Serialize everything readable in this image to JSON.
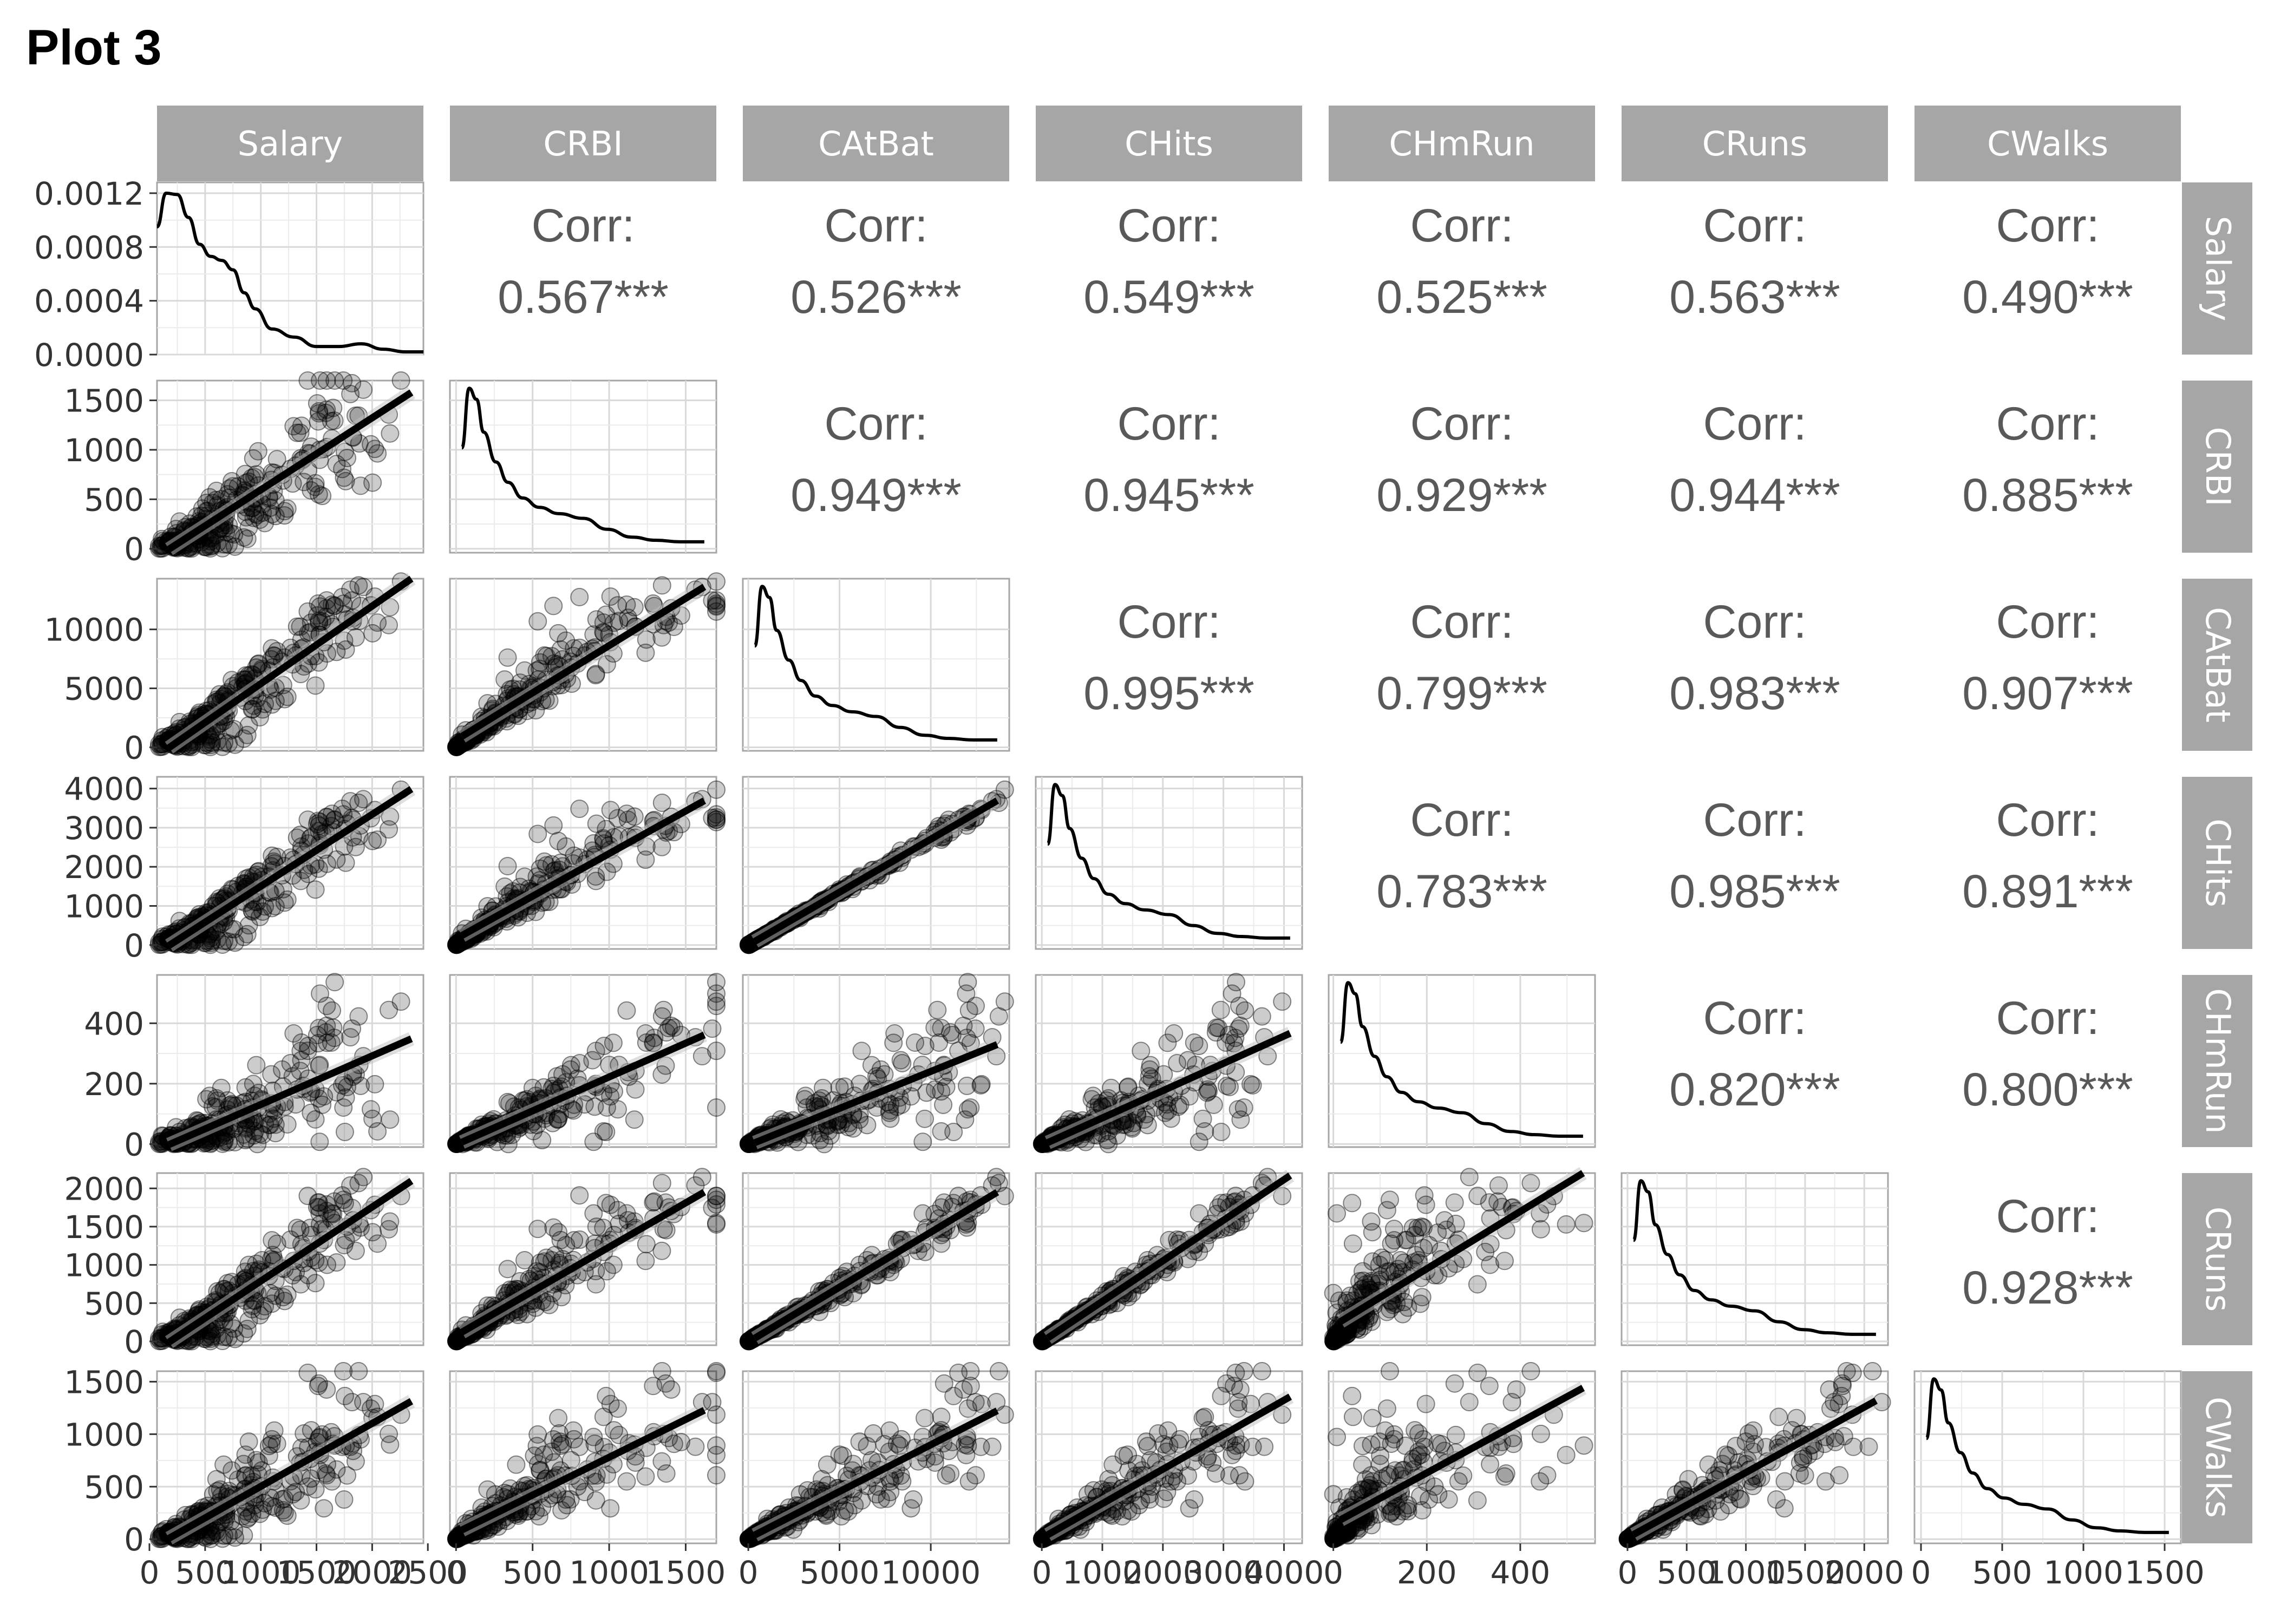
{
  "title": "Plot 3",
  "chart_data": {
    "type": "scatter-matrix",
    "title": "Plot 3",
    "variables": [
      "Salary",
      "CRBI",
      "CAtBat",
      "CHits",
      "CHmRun",
      "CRuns",
      "CWalks"
    ],
    "corr_label": "Corr:",
    "correlations": [
      {
        "row": "Salary",
        "col": "CRBI",
        "value": "0.567***"
      },
      {
        "row": "Salary",
        "col": "CAtBat",
        "value": "0.526***"
      },
      {
        "row": "Salary",
        "col": "CHits",
        "value": "0.549***"
      },
      {
        "row": "Salary",
        "col": "CHmRun",
        "value": "0.525***"
      },
      {
        "row": "Salary",
        "col": "CRuns",
        "value": "0.563***"
      },
      {
        "row": "Salary",
        "col": "CWalks",
        "value": "0.490***"
      },
      {
        "row": "CRBI",
        "col": "CAtBat",
        "value": "0.949***"
      },
      {
        "row": "CRBI",
        "col": "CHits",
        "value": "0.945***"
      },
      {
        "row": "CRBI",
        "col": "CHmRun",
        "value": "0.929***"
      },
      {
        "row": "CRBI",
        "col": "CRuns",
        "value": "0.944***"
      },
      {
        "row": "CRBI",
        "col": "CWalks",
        "value": "0.885***"
      },
      {
        "row": "CAtBat",
        "col": "CHits",
        "value": "0.995***"
      },
      {
        "row": "CAtBat",
        "col": "CHmRun",
        "value": "0.799***"
      },
      {
        "row": "CAtBat",
        "col": "CRuns",
        "value": "0.983***"
      },
      {
        "row": "CAtBat",
        "col": "CWalks",
        "value": "0.907***"
      },
      {
        "row": "CHits",
        "col": "CHmRun",
        "value": "0.783***"
      },
      {
        "row": "CHits",
        "col": "CRuns",
        "value": "0.985***"
      },
      {
        "row": "CHits",
        "col": "CWalks",
        "value": "0.891***"
      },
      {
        "row": "CHmRun",
        "col": "CRuns",
        "value": "0.820***"
      },
      {
        "row": "CHmRun",
        "col": "CWalks",
        "value": "0.800***"
      },
      {
        "row": "CRuns",
        "col": "CWalks",
        "value": "0.928***"
      }
    ],
    "ranges": {
      "Salary": [
        68,
        2460
      ],
      "CRBI": [
        -40,
        1700
      ],
      "CAtBat": [
        -300,
        14300
      ],
      "CHits": [
        -100,
        4300
      ],
      "CHmRun": [
        -10,
        560
      ],
      "CRuns": [
        -50,
        2200
      ],
      "CWalks": [
        -40,
        1600
      ]
    },
    "x_ticks": {
      "Salary": {
        "values": [
          0,
          500,
          1000,
          1500,
          2000,
          2500
        ],
        "labels": [
          "0",
          "500",
          "1000",
          "1500",
          "2000",
          "2500"
        ]
      },
      "CRBI": {
        "values": [
          0,
          500,
          1000,
          1500
        ],
        "labels": [
          "0",
          "500",
          "1000",
          "1500"
        ]
      },
      "CAtBat": {
        "values": [
          0,
          5000,
          10000
        ],
        "labels": [
          "0",
          "5000",
          "10000"
        ]
      },
      "CHits": {
        "values": [
          0,
          1000,
          2000,
          3000,
          4000
        ],
        "labels": [
          "0",
          "1000",
          "2000",
          "3000",
          "4000"
        ]
      },
      "CHmRun": {
        "values": [
          0,
          200,
          400
        ],
        "labels": [
          "0",
          "200",
          "400"
        ]
      },
      "CRuns": {
        "values": [
          0,
          500,
          1000,
          1500,
          2000
        ],
        "labels": [
          "0",
          "500",
          "1000",
          "1500",
          "2000"
        ]
      },
      "CWalks": {
        "values": [
          0,
          500,
          1000,
          1500
        ],
        "labels": [
          "0",
          "500",
          "1000",
          "1500"
        ]
      }
    },
    "y_ticks": {
      "Salary": {
        "values": [
          0,
          0.0004,
          0.0008,
          0.0012
        ],
        "labels": [
          "0.0000",
          "0.0004",
          "0.0008",
          "0.0012"
        ]
      },
      "CRBI": {
        "values": [
          0,
          500,
          1000,
          1500
        ],
        "labels": [
          "0",
          "500",
          "1000",
          "1500"
        ]
      },
      "CAtBat": {
        "values": [
          0,
          5000,
          10000
        ],
        "labels": [
          "0",
          "5000",
          "10000"
        ]
      },
      "CHits": {
        "values": [
          0,
          1000,
          2000,
          3000,
          4000
        ],
        "labels": [
          "0",
          "1000",
          "2000",
          "3000",
          "4000"
        ]
      },
      "CHmRun": {
        "values": [
          0,
          200,
          400
        ],
        "labels": [
          "0",
          "200",
          "400"
        ]
      },
      "CRuns": {
        "values": [
          0,
          500,
          1000,
          1500,
          2000
        ],
        "labels": [
          "0",
          "500",
          "1000",
          "1500",
          "2000"
        ]
      },
      "CWalks": {
        "values": [
          0,
          500,
          1000,
          1500
        ],
        "labels": [
          "0",
          "500",
          "1000",
          "1500"
        ]
      }
    },
    "density_ylim": [
      0,
      0.00128
    ],
    "salary_density": {
      "x": [
        68,
        150,
        250,
        350,
        450,
        550,
        650,
        750,
        850,
        950,
        1100,
        1300,
        1500,
        1700,
        1900,
        2100,
        2300,
        2460
      ],
      "y": [
        0.00095,
        0.0012,
        0.00119,
        0.00102,
        0.00082,
        0.00073,
        0.0007,
        0.00063,
        0.00046,
        0.00034,
        0.00019,
        0.00013,
        6e-05,
        6e-05,
        8e-05,
        4e-05,
        2e-05,
        2e-05
      ]
    },
    "density_shape": {
      "t": [
        0,
        0.03,
        0.06,
        0.09,
        0.14,
        0.19,
        0.25,
        0.32,
        0.4,
        0.5,
        0.6,
        0.7,
        0.8,
        0.9,
        1.0
      ],
      "h": [
        0.62,
        1.0,
        0.93,
        0.72,
        0.53,
        0.4,
        0.3,
        0.24,
        0.2,
        0.17,
        0.1,
        0.05,
        0.03,
        0.02,
        0.02
      ]
    },
    "grid": true,
    "points": {
      "count": 263,
      "alpha": 0.2,
      "color": "#000000"
    },
    "smooth_line": "lm"
  }
}
